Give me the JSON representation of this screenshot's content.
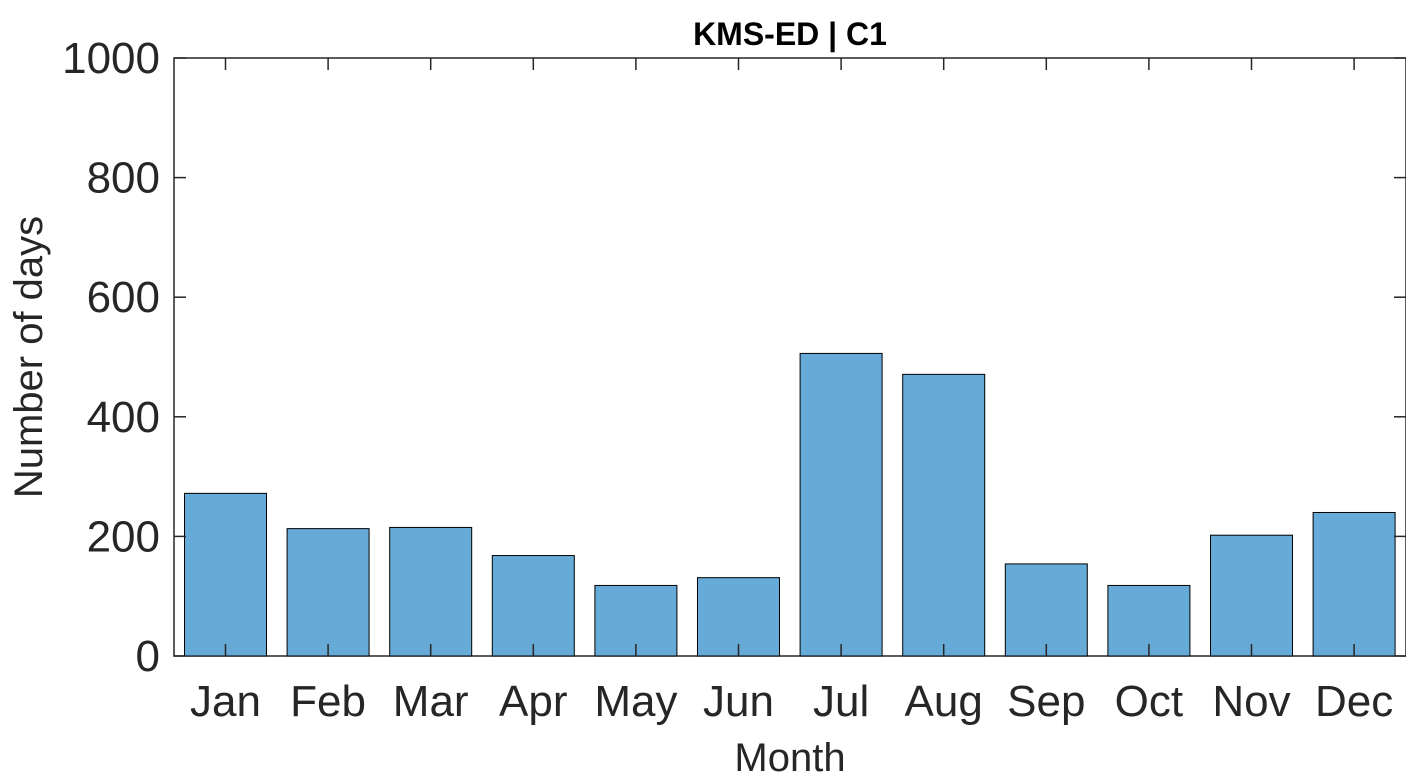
{
  "chart_data": {
    "type": "bar",
    "title": "KMS-ED | C1",
    "xlabel": "Month",
    "ylabel": "Number of days",
    "categories": [
      "Jan",
      "Feb",
      "Mar",
      "Apr",
      "May",
      "Jun",
      "Jul",
      "Aug",
      "Sep",
      "Oct",
      "Nov",
      "Dec"
    ],
    "values": [
      272,
      213,
      215,
      168,
      118,
      131,
      506,
      471,
      154,
      118,
      202,
      240
    ],
    "ylim": [
      0,
      1000
    ],
    "yticks": [
      0,
      200,
      400,
      600,
      800,
      1000
    ],
    "grid": false,
    "legend": "none",
    "bar_color": "#66aad7",
    "bar_edge_color": "#000000",
    "axis_color": "#262626"
  }
}
